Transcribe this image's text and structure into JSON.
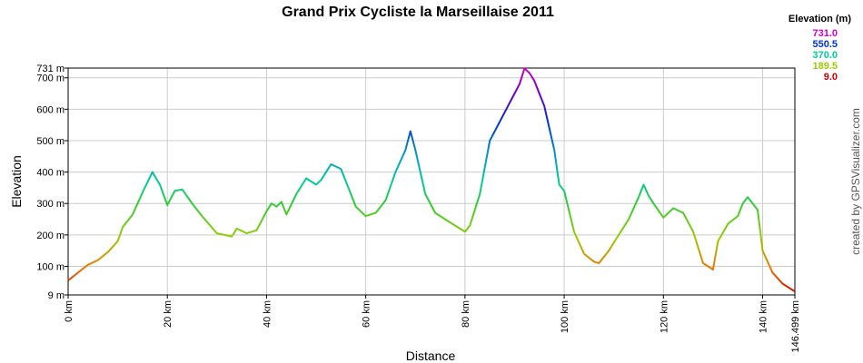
{
  "chart_data": {
    "type": "line",
    "title": "Grand Prix Cycliste la Marseillaise 2011",
    "xlabel": "Distance",
    "ylabel": "Elevation",
    "credit": "created by GPSVisualizer.com",
    "xlim": [
      0,
      146.499
    ],
    "ylim": [
      9,
      731
    ],
    "x_ticks": [
      {
        "value": 0,
        "label": "0 km"
      },
      {
        "value": 20,
        "label": "20 km"
      },
      {
        "value": 40,
        "label": "40 km"
      },
      {
        "value": 60,
        "label": "60 km"
      },
      {
        "value": 80,
        "label": "80 km"
      },
      {
        "value": 100,
        "label": "100 km"
      },
      {
        "value": 120,
        "label": "120 km"
      },
      {
        "value": 140,
        "label": "140 km"
      },
      {
        "value": 146.499,
        "label": "146.499 km"
      }
    ],
    "y_ticks": [
      {
        "value": 9,
        "label": "9 m"
      },
      {
        "value": 100,
        "label": "100 m"
      },
      {
        "value": 200,
        "label": "200 m"
      },
      {
        "value": 300,
        "label": "300 m"
      },
      {
        "value": 400,
        "label": "400 m"
      },
      {
        "value": 500,
        "label": "500 m"
      },
      {
        "value": 600,
        "label": "600 m"
      },
      {
        "value": 700,
        "label": "700 m"
      },
      {
        "value": 731,
        "label": "731 m"
      }
    ],
    "grid": true,
    "legend": {
      "title": "Elevation (m)",
      "position": "top-right",
      "entries": [
        {
          "label": "731.0",
          "value": 731.0,
          "color": "#cc00cc"
        },
        {
          "label": "550.5",
          "value": 550.5,
          "color": "#0033cc"
        },
        {
          "label": "370.0",
          "value": 370.0,
          "color": "#00cc99"
        },
        {
          "label": "189.5",
          "value": 189.5,
          "color": "#99cc00"
        },
        {
          "label": "9.0",
          "value": 9.0,
          "color": "#cc0000"
        }
      ]
    },
    "series": [
      {
        "x": [
          0,
          2,
          4,
          6,
          8,
          10,
          11,
          13,
          15,
          17,
          18.5,
          20,
          21.5,
          23,
          25,
          27,
          30,
          33,
          34,
          36,
          38,
          40,
          41,
          42,
          43,
          44,
          46,
          48,
          50,
          51,
          53,
          55,
          57,
          58,
          60,
          62,
          64,
          66,
          68,
          69,
          70,
          72,
          74,
          76,
          78,
          80,
          81,
          83,
          85,
          87,
          89,
          91,
          92,
          93,
          94,
          96,
          98,
          99,
          100,
          102,
          104,
          106,
          107,
          109,
          111,
          113,
          115,
          116,
          117,
          118,
          120,
          122,
          124,
          126,
          128,
          130,
          131,
          133,
          135,
          136,
          137,
          139,
          140,
          142,
          144,
          146.499
        ],
        "y": [
          55,
          80,
          105,
          120,
          145,
          180,
          225,
          265,
          335,
          400,
          360,
          295,
          340,
          345,
          300,
          260,
          205,
          195,
          220,
          205,
          215,
          275,
          300,
          290,
          305,
          265,
          330,
          380,
          360,
          375,
          425,
          410,
          330,
          290,
          260,
          270,
          310,
          400,
          470,
          530,
          470,
          330,
          270,
          250,
          230,
          210,
          230,
          330,
          500,
          560,
          620,
          680,
          730,
          715,
          690,
          610,
          470,
          360,
          340,
          210,
          140,
          115,
          110,
          150,
          200,
          250,
          320,
          360,
          325,
          300,
          255,
          285,
          270,
          210,
          110,
          90,
          180,
          235,
          260,
          300,
          320,
          280,
          150,
          80,
          45,
          20
        ]
      }
    ]
  }
}
